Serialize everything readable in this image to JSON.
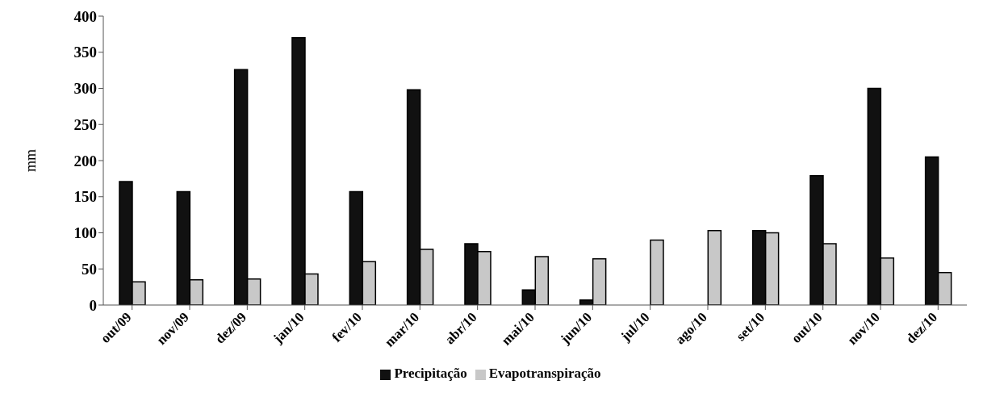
{
  "chart_data": {
    "type": "bar",
    "ylabel": "mm",
    "categories": [
      "out/09",
      "nov/09",
      "dez/09",
      "jan/10",
      "fev/10",
      "mar/10",
      "abr/10",
      "mai/10",
      "jun/10",
      "jul/10",
      "ago/10",
      "set/10",
      "out/10",
      "nov/10",
      "dez/10"
    ],
    "series": [
      {
        "name": "Precipitação",
        "color": "#111111",
        "values": [
          171,
          157,
          326,
          370,
          157,
          298,
          85,
          21,
          7,
          0,
          0,
          103,
          179,
          300,
          205
        ]
      },
      {
        "name": "Evapotranspiração",
        "color": "#c8c8c8",
        "values": [
          32,
          35,
          36,
          43,
          60,
          77,
          74,
          67,
          64,
          90,
          103,
          100,
          85,
          65,
          45
        ]
      }
    ],
    "ylim": [
      0,
      400
    ],
    "yticks": [
      0,
      50,
      100,
      150,
      200,
      250,
      300,
      350,
      400
    ],
    "grid": false,
    "legend": "bottom"
  }
}
